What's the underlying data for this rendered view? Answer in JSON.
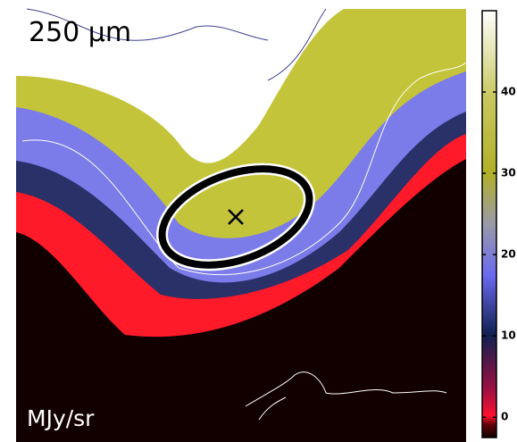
{
  "chart_data": {
    "type": "heatmap",
    "title": "250 μm",
    "colorbar_label": "MJy/sr",
    "clim": [
      -2.5,
      50
    ],
    "colorbar_ticks": [
      0,
      10,
      20,
      30,
      40
    ]
  }
}
